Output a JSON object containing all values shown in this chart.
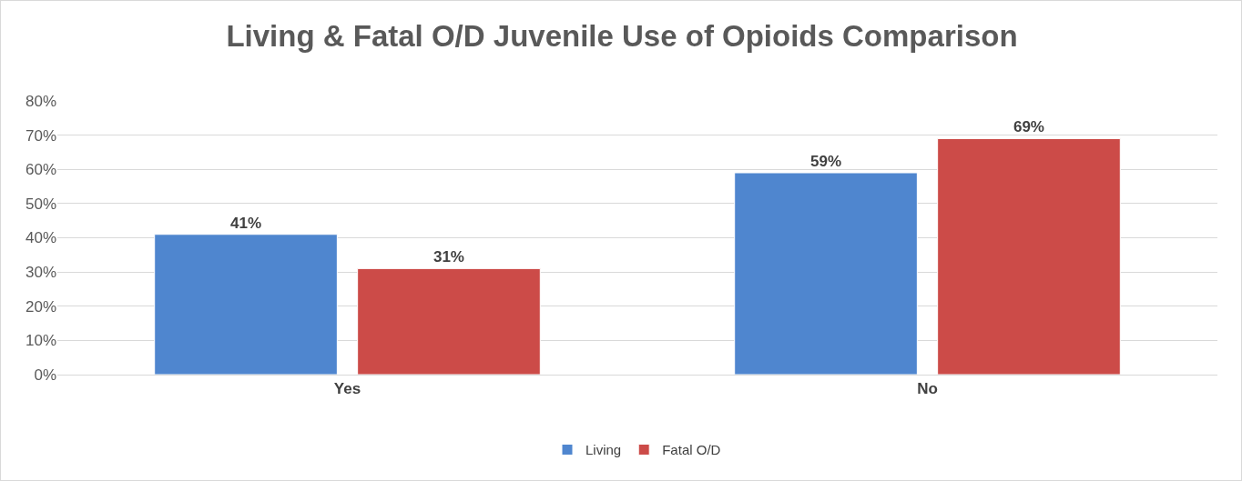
{
  "chart_data": {
    "type": "bar",
    "title": "Living & Fatal O/D Juvenile Use of Opioids Comparison",
    "categories": [
      "Yes",
      "No"
    ],
    "series": [
      {
        "name": "Living",
        "color": "#4f86cf",
        "values": [
          41,
          59
        ],
        "value_labels": [
          "41%",
          "59%"
        ]
      },
      {
        "name": "Fatal O/D",
        "color": "#cc4b48",
        "values": [
          31,
          69
        ],
        "value_labels": [
          "31%",
          "69%"
        ]
      }
    ],
    "ylim": [
      0,
      80
    ],
    "yticks": [
      {
        "value": 0,
        "label": "0%"
      },
      {
        "value": 10,
        "label": "10%"
      },
      {
        "value": 20,
        "label": "20%"
      },
      {
        "value": 30,
        "label": "30%"
      },
      {
        "value": 40,
        "label": "40%"
      },
      {
        "value": 50,
        "label": "50%"
      },
      {
        "value": 60,
        "label": "60%"
      },
      {
        "value": 70,
        "label": "70%"
      },
      {
        "value": 80,
        "label": "80%"
      }
    ],
    "grid": "y",
    "legend": "bottom"
  }
}
